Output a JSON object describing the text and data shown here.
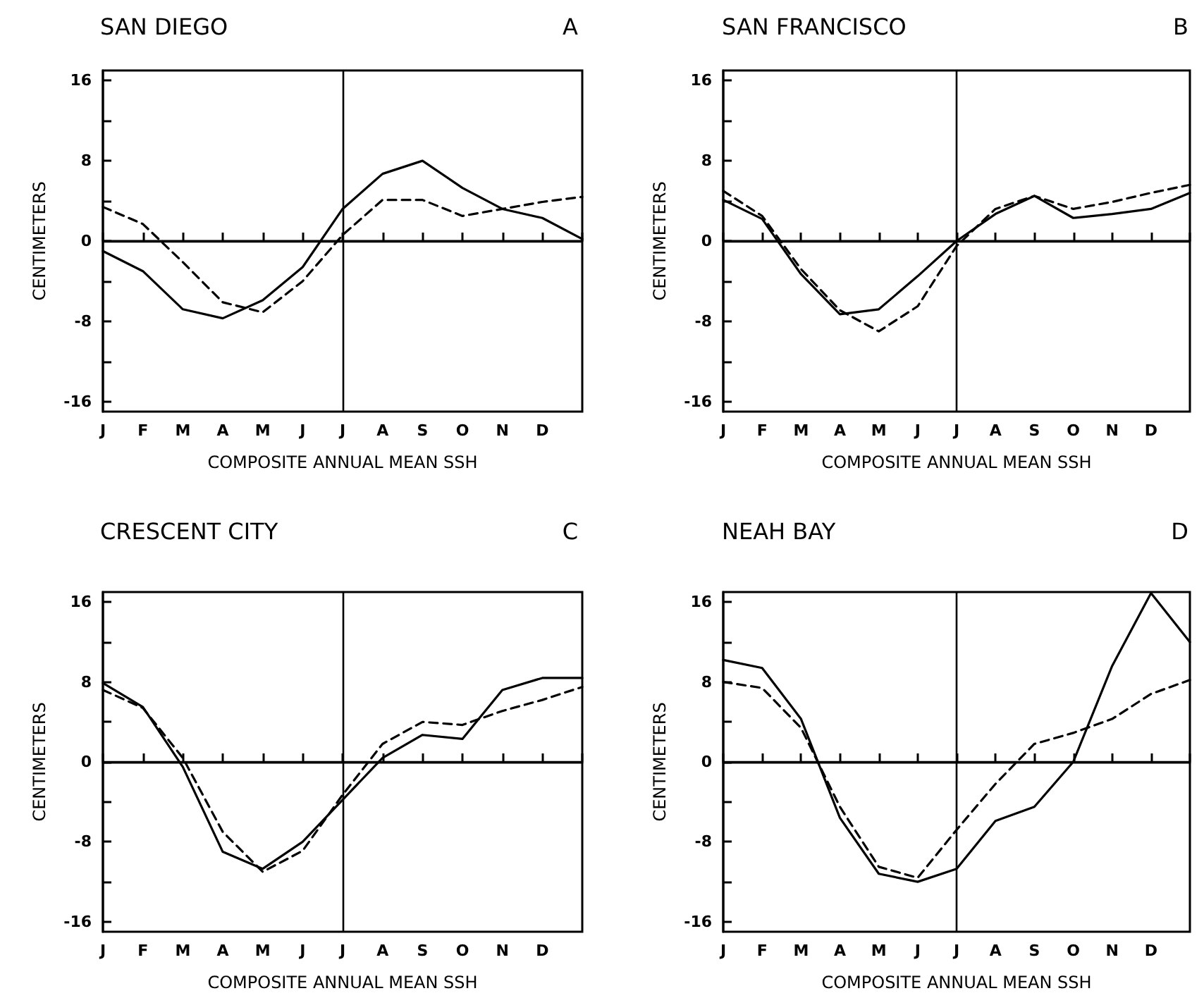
{
  "chart_data": [
    {
      "type": "line",
      "title": "SAN DIEGO",
      "annotations": [
        "A"
      ],
      "xlabel": "COMPOSITE ANNUAL MEAN SSH",
      "ylabel": "CENTIMETERS",
      "categories": [
        "J",
        "F",
        "M",
        "A",
        "M",
        "J",
        "J",
        "A",
        "S",
        "O",
        "N",
        "D",
        null
      ],
      "ylim": [
        -17,
        17
      ],
      "yticks": [
        -16,
        {
          "value": -12,
          "label": null
        },
        -8,
        {
          "value": -4,
          "label": null
        },
        0,
        {
          "value": 4,
          "label": null
        },
        8,
        {
          "value": 12,
          "label": null
        },
        16
      ],
      "marker": "none",
      "ref_lines": [
        {
          "axis": "y",
          "value": 0,
          "label": null
        }
      ],
      "series": [
        {
          "color": "#000000",
          "line_style": "solid",
          "values": [
            -1,
            -3,
            -6.8,
            -7.7,
            -5.9,
            -2.6,
            3.2,
            6.7,
            8,
            5.3,
            3.2,
            2.3,
            0.2
          ]
        },
        {
          "color": "#000000",
          "line_style": "dashed",
          "values": [
            3.4,
            1.7,
            -2.1,
            -6.1,
            -7.1,
            -4,
            0.6,
            4.1,
            4.1,
            2.5,
            3.2,
            3.9,
            4.4
          ]
        }
      ]
    },
    {
      "type": "line",
      "title": "SAN FRANCISCO",
      "annotations": [
        "B"
      ],
      "xlabel": "COMPOSITE ANNUAL MEAN SSH",
      "ylabel": "CENTIMETERS",
      "categories": [
        "J",
        "F",
        "M",
        "A",
        "M",
        "J",
        "J",
        "A",
        "S",
        "O",
        "N",
        "D",
        null
      ],
      "ylim": [
        -17,
        17
      ],
      "yticks": [
        -16,
        {
          "value": -12,
          "label": null
        },
        -8,
        {
          "value": -4,
          "label": null
        },
        0,
        {
          "value": 4,
          "label": null
        },
        8,
        {
          "value": 12,
          "label": null
        },
        16
      ],
      "marker": "none",
      "ref_lines": [
        {
          "axis": "y",
          "value": 0,
          "label": null
        }
      ],
      "series": [
        {
          "color": "#000000",
          "line_style": "solid",
          "values": [
            4.1,
            2.2,
            -3.3,
            -7.3,
            -6.8,
            -3.5,
            0,
            2.7,
            4.5,
            2.3,
            2.7,
            3.2,
            4.8
          ]
        },
        {
          "color": "#000000",
          "line_style": "dashed",
          "values": [
            5,
            2.5,
            -2.8,
            -6.9,
            -9,
            -6.5,
            -0.5,
            3.2,
            4.5,
            3.2,
            3.9,
            4.8,
            5.6
          ]
        }
      ]
    },
    {
      "type": "line",
      "title": "CRESCENT CITY",
      "annotations": [
        "C"
      ],
      "xlabel": "COMPOSITE ANNUAL MEAN SSH",
      "ylabel": "CENTIMETERS",
      "categories": [
        "J",
        "F",
        "M",
        "A",
        "M",
        "J",
        "J",
        "A",
        "S",
        "O",
        "N",
        "D",
        null
      ],
      "ylim": [
        -17,
        17
      ],
      "yticks": [
        -16,
        {
          "value": -12,
          "label": null
        },
        -8,
        {
          "value": -4,
          "label": null
        },
        0,
        {
          "value": 4,
          "label": null
        },
        8,
        {
          "value": 12,
          "label": null
        },
        16
      ],
      "marker": "none",
      "ref_lines": [
        {
          "axis": "y",
          "value": 0,
          "label": null
        }
      ],
      "series": [
        {
          "color": "#000000",
          "line_style": "solid",
          "values": [
            7.9,
            5.5,
            -0.5,
            -9,
            -10.7,
            -8,
            -3.8,
            0.4,
            2.7,
            2.3,
            7.2,
            8.4,
            8.4
          ]
        },
        {
          "color": "#000000",
          "line_style": "dashed",
          "values": [
            7.2,
            5.4,
            0.4,
            -7,
            -11,
            -8.9,
            -3.3,
            1.8,
            4,
            3.7,
            5.1,
            6.2,
            7.5
          ]
        }
      ]
    },
    {
      "type": "line",
      "title": "NEAH BAY",
      "annotations": [
        "D"
      ],
      "xlabel": "COMPOSITE ANNUAL MEAN SSH",
      "ylabel": "CENTIMETERS",
      "categories": [
        "J",
        "F",
        "M",
        "A",
        "M",
        "J",
        "J",
        "A",
        "S",
        "O",
        "N",
        "D",
        null
      ],
      "ylim": [
        -17,
        17
      ],
      "yticks": [
        -16,
        {
          "value": -12,
          "label": null
        },
        -8,
        {
          "value": -4,
          "label": null
        },
        0,
        {
          "value": 4,
          "label": null
        },
        8,
        {
          "value": 12,
          "label": null
        },
        16
      ],
      "marker": "none",
      "ref_lines": [
        {
          "axis": "y",
          "value": 0,
          "label": null
        }
      ],
      "series": [
        {
          "color": "#000000",
          "line_style": "solid",
          "values": [
            10.2,
            9.4,
            4.3,
            -5.6,
            -11.2,
            -12,
            -10.7,
            -5.9,
            -4.5,
            0,
            9.6,
            16.9,
            12
          ]
        },
        {
          "color": "#000000",
          "line_style": "dashed",
          "values": [
            8,
            7.4,
            3.4,
            -4.5,
            -10.5,
            -11.6,
            -6.8,
            -2.2,
            1.8,
            2.9,
            4.3,
            6.8,
            8.2
          ]
        }
      ]
    }
  ]
}
